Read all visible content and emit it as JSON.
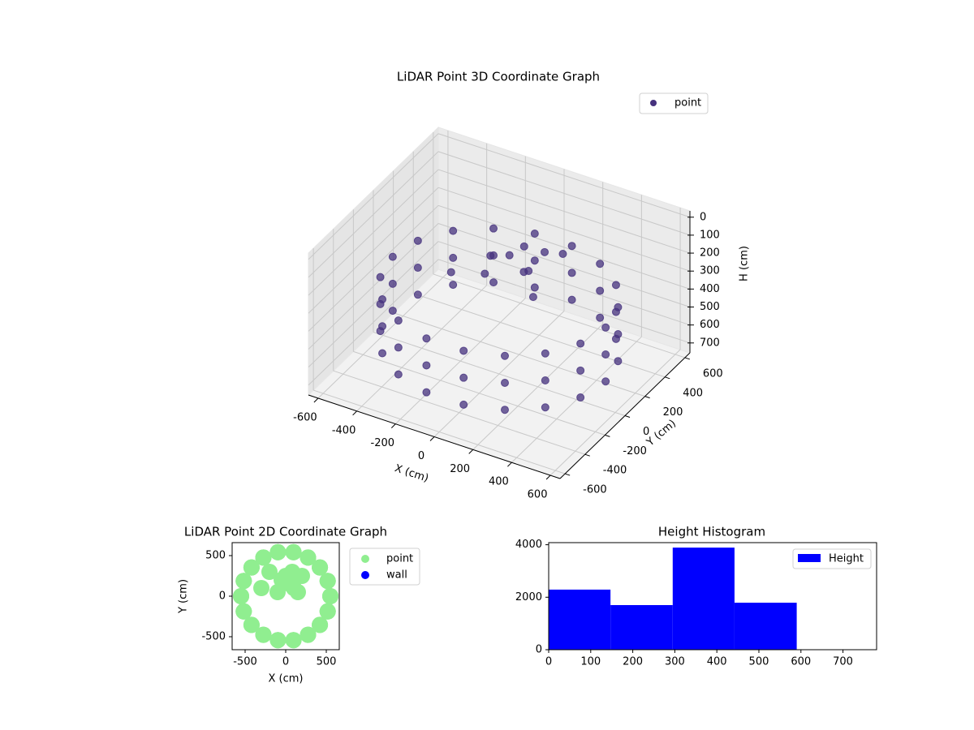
{
  "chart_data": [
    {
      "type": "scatter3d",
      "title": "LiDAR Point 3D Coordinate Graph",
      "xlabel": "X (cm)",
      "ylabel": "Y (cm)",
      "zlabel": "H (cm)",
      "xlim": [
        -650,
        650
      ],
      "ylim": [
        -650,
        650
      ],
      "zlim": [
        -35,
        755
      ],
      "z_inverted": true,
      "xticks": [
        -600,
        -400,
        -200,
        0,
        200,
        400,
        600
      ],
      "yticks": [
        -600,
        -400,
        -200,
        0,
        200,
        400,
        600
      ],
      "zticks": [
        0,
        100,
        200,
        300,
        400,
        500,
        600,
        700
      ],
      "grid": true,
      "legend": "upper right",
      "series": [
        {
          "name": "point",
          "color": "#46327e",
          "x": [
            550,
            550,
            550,
            517,
            517,
            517,
            421,
            421,
            421,
            275,
            275,
            275,
            96,
            96,
            96,
            -96,
            -96,
            -96,
            -275,
            -275,
            -275,
            -421,
            -421,
            -421,
            -517,
            -517,
            -517,
            -550,
            -550,
            -550,
            -517,
            -517,
            -517,
            -421,
            -421,
            -421,
            -275,
            -275,
            -275,
            -96,
            -96,
            -96,
            96,
            96,
            96,
            275,
            275,
            275,
            421,
            421,
            421,
            517,
            517,
            517,
            50,
            100,
            -50,
            0,
            150,
            -300,
            -200,
            200,
            -100,
            80
          ],
          "y": [
            0,
            0,
            0,
            188,
            188,
            188,
            354,
            354,
            354,
            476,
            476,
            476,
            542,
            542,
            542,
            542,
            542,
            542,
            476,
            476,
            476,
            354,
            354,
            354,
            188,
            188,
            188,
            0,
            0,
            0,
            -188,
            -188,
            -188,
            -354,
            -354,
            -354,
            -476,
            -476,
            -476,
            -542,
            -542,
            -542,
            -542,
            -542,
            -542,
            -476,
            -476,
            -476,
            -354,
            -354,
            -354,
            -188,
            -188,
            -188,
            150,
            100,
            200,
            250,
            50,
            100,
            300,
            250,
            50,
            300
          ],
          "z": [
            300,
            450,
            600,
            300,
            450,
            600,
            300,
            450,
            600,
            300,
            450,
            600,
            300,
            450,
            600,
            300,
            450,
            600,
            300,
            450,
            600,
            300,
            450,
            600,
            300,
            450,
            600,
            300,
            450,
            600,
            300,
            450,
            600,
            300,
            450,
            600,
            300,
            450,
            600,
            300,
            450,
            600,
            300,
            450,
            600,
            300,
            450,
            600,
            300,
            450,
            600,
            300,
            450,
            600,
            250,
            200,
            220,
            180,
            300,
            350,
            330,
            150,
            260,
            210
          ]
        }
      ]
    },
    {
      "type": "scatter",
      "title": "LiDAR Point 2D Coordinate Graph",
      "xlabel": "X (cm)",
      "ylabel": "Y (cm)",
      "xlim": [
        -660,
        660
      ],
      "ylim": [
        -660,
        660
      ],
      "xticks": [
        -500,
        0,
        500
      ],
      "yticks": [
        -500,
        0,
        500
      ],
      "legend": "outside right",
      "series": [
        {
          "name": "point",
          "color": "#90ee90",
          "x": [
            550,
            550,
            550,
            517,
            517,
            517,
            421,
            421,
            421,
            275,
            275,
            275,
            96,
            96,
            96,
            -96,
            -96,
            -96,
            -275,
            -275,
            -275,
            -421,
            -421,
            -421,
            -517,
            -517,
            -517,
            -550,
            -550,
            -550,
            -517,
            -517,
            -517,
            -421,
            -421,
            -421,
            -275,
            -275,
            -275,
            -96,
            -96,
            -96,
            96,
            96,
            96,
            275,
            275,
            275,
            421,
            421,
            421,
            517,
            517,
            517,
            50,
            100,
            -50,
            0,
            150,
            -300,
            -200,
            200,
            -100,
            80
          ],
          "y": [
            0,
            0,
            0,
            188,
            188,
            188,
            354,
            354,
            354,
            476,
            476,
            476,
            542,
            542,
            542,
            542,
            542,
            542,
            476,
            476,
            476,
            354,
            354,
            354,
            188,
            188,
            188,
            0,
            0,
            0,
            -188,
            -188,
            -188,
            -354,
            -354,
            -354,
            -476,
            -476,
            -476,
            -542,
            -542,
            -542,
            -542,
            -542,
            -542,
            -476,
            -476,
            -476,
            -354,
            -354,
            -354,
            -188,
            -188,
            -188,
            150,
            100,
            200,
            250,
            50,
            100,
            300,
            250,
            50,
            300
          ]
        },
        {
          "name": "wall",
          "color": "#0000ff",
          "x": [],
          "y": []
        }
      ]
    },
    {
      "type": "histogram",
      "title": "Height Histogram",
      "xlim": [
        0,
        780
      ],
      "ylim": [
        0,
        4080
      ],
      "xticks": [
        0,
        100,
        200,
        300,
        400,
        500,
        600,
        700
      ],
      "yticks": [
        0,
        2000,
        4000
      ],
      "legend": "upper right",
      "bins": [
        0,
        147,
        295,
        442,
        590,
        737
      ],
      "series": [
        {
          "name": "Height",
          "color": "#0000ff",
          "values": [
            2290,
            1700,
            3890,
            1790,
            0
          ]
        }
      ]
    }
  ]
}
